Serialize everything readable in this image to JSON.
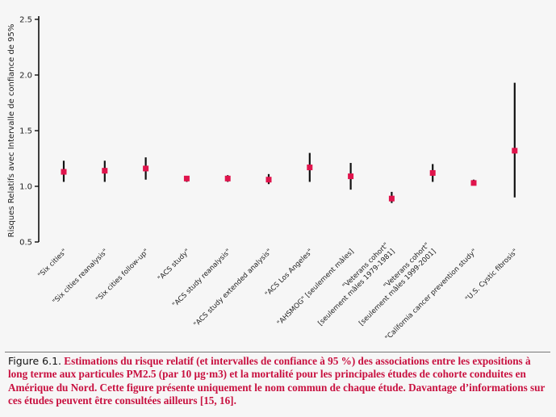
{
  "chart_data": {
    "type": "scatter",
    "title": "",
    "ylabel": "Risques Relatifs avec Intervalle de confiance de 95%",
    "xlabel": "",
    "ylim": [
      0.5,
      2.5
    ],
    "yticks": [
      "0.5",
      "1.0",
      "1.5",
      "2.0",
      "2.5"
    ],
    "marker_color": "#e0144c",
    "bar_color": "#111111",
    "categories": [
      [
        "\"Six cities\""
      ],
      [
        "\"Six cities reanalysis\""
      ],
      [
        "\"Six cities follow-up\""
      ],
      [
        "\"ACS study\""
      ],
      [
        "\"ACS study reanalysis\""
      ],
      [
        "\"ACS study extended analysis\""
      ],
      [
        "\"ACS Los Angeles\""
      ],
      [
        "\"AHSMOG\" [seulement mâles]"
      ],
      [
        "\"Veterans cohort\"",
        "[seulement mâles 1979-1981]"
      ],
      [
        "\"Veterans cohort\"",
        "[seulement mâles 1999-2001]"
      ],
      [
        "\"California cancer prevention study\""
      ],
      [
        "\"U.S. Cystic fibrosis\""
      ]
    ],
    "values": [
      1.13,
      1.14,
      1.16,
      1.07,
      1.07,
      1.06,
      1.17,
      1.09,
      0.89,
      1.12,
      1.03,
      1.32
    ],
    "lower": [
      1.04,
      1.04,
      1.06,
      1.04,
      1.04,
      1.02,
      1.04,
      0.97,
      0.85,
      1.04,
      1.01,
      0.9
    ],
    "upper": [
      1.23,
      1.23,
      1.26,
      1.09,
      1.1,
      1.11,
      1.3,
      1.21,
      0.95,
      1.2,
      1.06,
      1.93
    ]
  },
  "caption": {
    "label": "Figure 6.1.",
    "text": "Estimations du risque relatif (et intervalles de confiance à 95 %) des associations entre les expositions à long terme aux particules PM2.5 (par 10 µg·m3) et la mortalité pour les principales études de cohorte conduites en Amérique du Nord. Cette figure présente uniquement le nom commun de chaque étude. Davantage d’informations sur ces études peuvent être consultées ailleurs [15, 16]."
  }
}
